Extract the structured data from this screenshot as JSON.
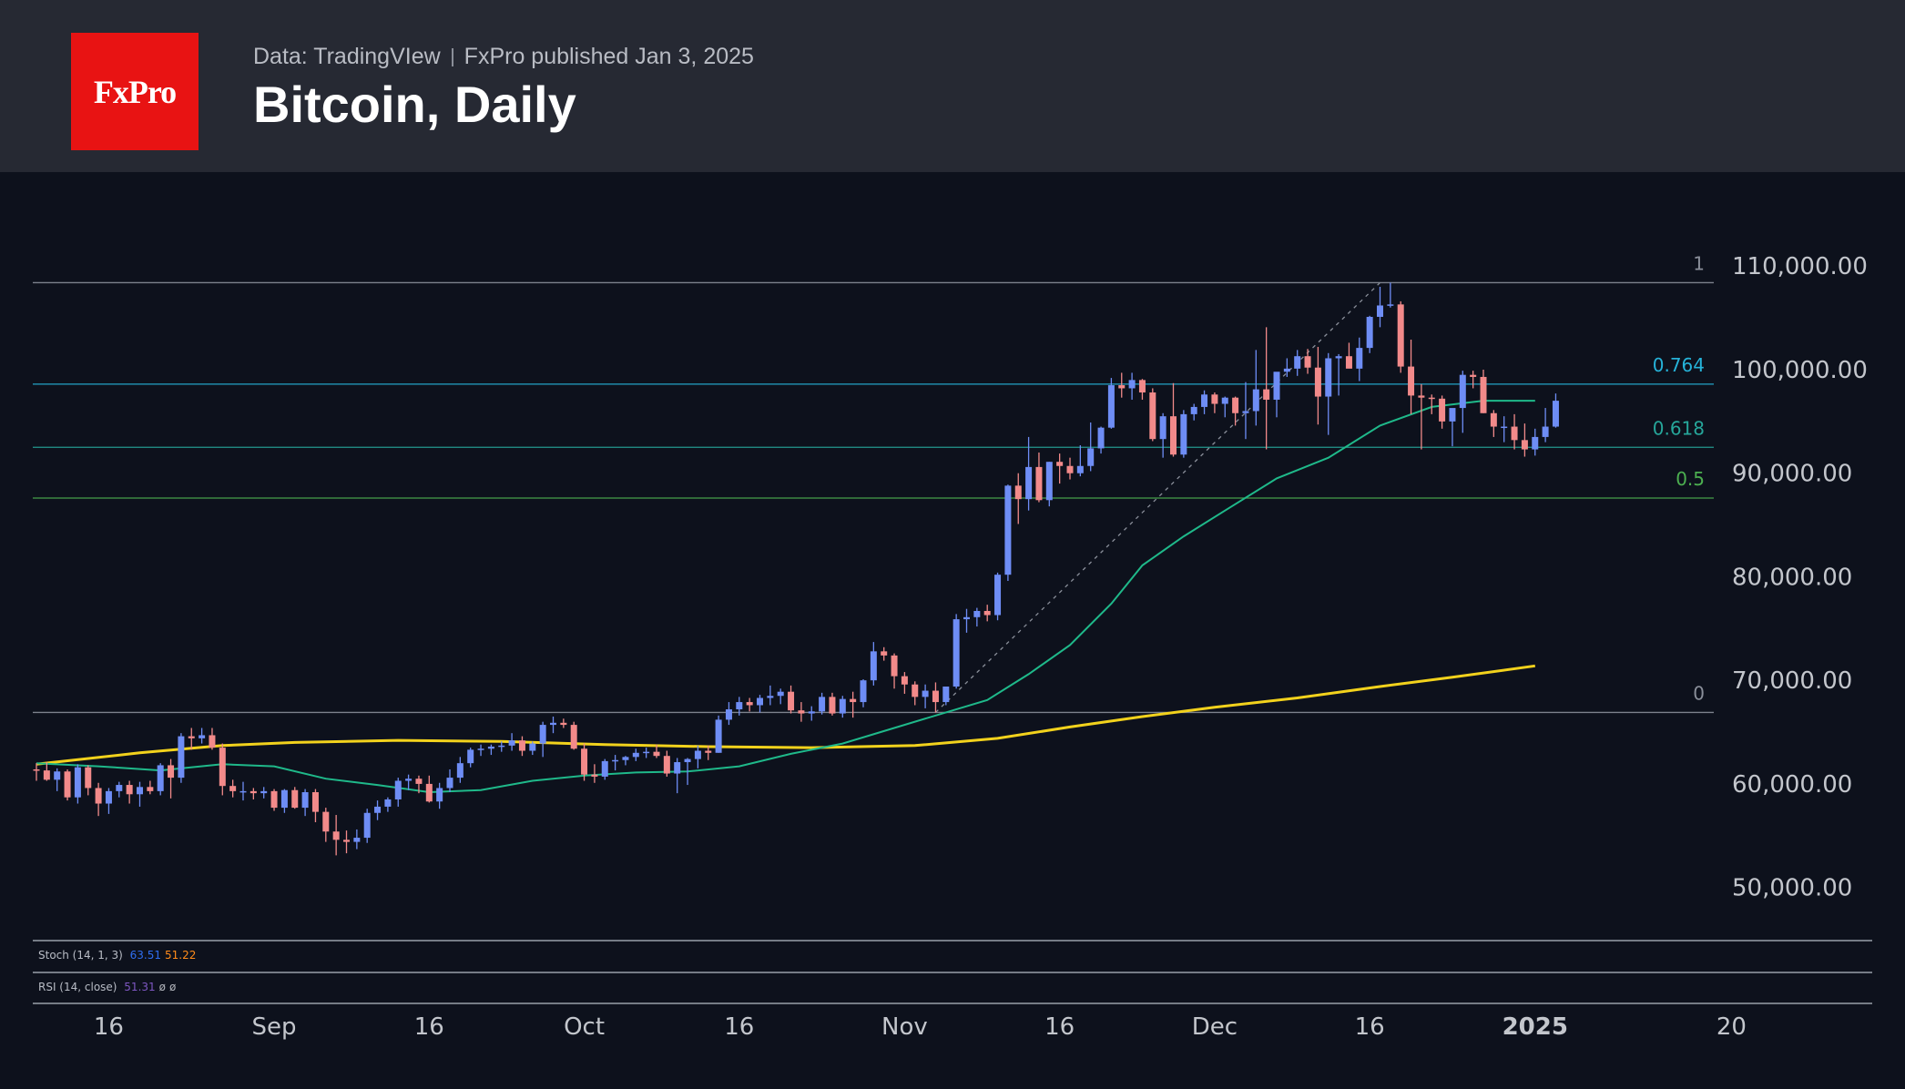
{
  "header": {
    "logo_text": "FxPro",
    "source": "Data: TradingVIew",
    "published": "FxPro published Jan 3, 2025",
    "title": "Bitcoin, Daily"
  },
  "chart_data": {
    "type": "candlestick",
    "title": "Bitcoin, Daily",
    "ylim": [
      46000,
      113000
    ],
    "y_ticks": [
      {
        "value": 110000,
        "label": "110,000.00"
      },
      {
        "value": 100000,
        "label": "100,000.00"
      },
      {
        "value": 90000,
        "label": "90,000.00"
      },
      {
        "value": 80000,
        "label": "80,000.00"
      },
      {
        "value": 70000,
        "label": "70,000.00"
      },
      {
        "value": 60000,
        "label": "60,000.00"
      },
      {
        "value": 50000,
        "label": "50,000.00"
      }
    ],
    "x_ticks": [
      {
        "index": 7,
        "label": "16"
      },
      {
        "index": 23,
        "label": "Sep"
      },
      {
        "index": 38,
        "label": "16"
      },
      {
        "index": 53,
        "label": "Oct"
      },
      {
        "index": 68,
        "label": "16"
      },
      {
        "index": 84,
        "label": "Nov"
      },
      {
        "index": 99,
        "label": "16"
      },
      {
        "index": 114,
        "label": "Dec"
      },
      {
        "index": 129,
        "label": "16"
      },
      {
        "index": 145,
        "label": "2025",
        "bold": true
      },
      {
        "index": 164,
        "label": "20"
      }
    ],
    "fib_levels": [
      {
        "ratio": "1",
        "value": 108300,
        "color": "#8a8f9a"
      },
      {
        "ratio": "0.764",
        "value": 98500,
        "color": "#26b3d9"
      },
      {
        "ratio": "0.618",
        "value": 92400,
        "color": "#26a69a"
      },
      {
        "ratio": "0.5",
        "value": 87500,
        "color": "#4caf50"
      },
      {
        "ratio": "0",
        "value": 66800,
        "color": "#8a8f9a"
      }
    ],
    "colors": {
      "up": "#6e8df5",
      "down": "#f28a8a",
      "ma_fast": "#1fb98a",
      "ma_slow": "#f2d21c",
      "background": "#0d111c"
    },
    "candles": [
      [
        61300,
        61900,
        60200,
        61200
      ],
      [
        61200,
        62000,
        60200,
        60300
      ],
      [
        60300,
        61400,
        59200,
        61100
      ],
      [
        61100,
        61300,
        58300,
        58600
      ],
      [
        58600,
        61800,
        58000,
        61500
      ],
      [
        61500,
        61700,
        58800,
        59500
      ],
      [
        59500,
        60000,
        56800,
        58000
      ],
      [
        58000,
        59500,
        57000,
        59200
      ],
      [
        59200,
        60100,
        58600,
        59800
      ],
      [
        59800,
        60200,
        58000,
        58900
      ],
      [
        58900,
        60100,
        57700,
        59600
      ],
      [
        59600,
        60200,
        58900,
        59200
      ],
      [
        59200,
        61900,
        58800,
        61700
      ],
      [
        61700,
        62300,
        58500,
        60500
      ],
      [
        60500,
        64800,
        60000,
        64500
      ],
      [
        64500,
        65300,
        63200,
        64300
      ],
      [
        64300,
        65300,
        63800,
        64600
      ],
      [
        64600,
        65300,
        63200,
        63400
      ],
      [
        63400,
        63800,
        58800,
        59700
      ],
      [
        59700,
        60300,
        58600,
        59200
      ],
      [
        59200,
        60100,
        58300,
        59200
      ],
      [
        59200,
        59500,
        58400,
        59000
      ],
      [
        59000,
        59600,
        58500,
        59200
      ],
      [
        59200,
        59400,
        57300,
        57600
      ],
      [
        57600,
        59400,
        57100,
        59300
      ],
      [
        59300,
        59600,
        57500,
        57600
      ],
      [
        57600,
        59400,
        56800,
        59100
      ],
      [
        59100,
        59400,
        56200,
        57200
      ],
      [
        57200,
        57600,
        54300,
        55300
      ],
      [
        55300,
        56900,
        53000,
        54500
      ],
      [
        54500,
        55400,
        53200,
        54300
      ],
      [
        54300,
        55500,
        53600,
        54700
      ],
      [
        54700,
        57500,
        54200,
        57100
      ],
      [
        57100,
        58300,
        56400,
        57700
      ],
      [
        57700,
        58600,
        57200,
        58400
      ],
      [
        58400,
        60500,
        57700,
        60200
      ],
      [
        60200,
        60800,
        59300,
        60400
      ],
      [
        60400,
        60700,
        59000,
        59900
      ],
      [
        59900,
        60700,
        58100,
        58200
      ],
      [
        58200,
        60000,
        57500,
        59500
      ],
      [
        59500,
        61300,
        59100,
        60500
      ],
      [
        60500,
        62500,
        60000,
        61900
      ],
      [
        61900,
        63400,
        61500,
        63200
      ],
      [
        63200,
        63700,
        62600,
        63300
      ],
      [
        63300,
        63700,
        62700,
        63500
      ],
      [
        63500,
        64000,
        63000,
        63600
      ],
      [
        63600,
        64800,
        63100,
        64100
      ],
      [
        64100,
        64500,
        62600,
        63100
      ],
      [
        63100,
        64000,
        62700,
        63800
      ],
      [
        63800,
        65900,
        62500,
        65600
      ],
      [
        65600,
        66400,
        64800,
        65800
      ],
      [
        65800,
        66200,
        65300,
        65600
      ],
      [
        65600,
        65900,
        63200,
        63300
      ],
      [
        63300,
        63800,
        60200,
        60800
      ],
      [
        60800,
        61800,
        60000,
        60600
      ],
      [
        60600,
        62300,
        60300,
        62100
      ],
      [
        62100,
        62700,
        61200,
        62200
      ],
      [
        62200,
        62600,
        61700,
        62500
      ],
      [
        62500,
        63300,
        62100,
        62900
      ],
      [
        62900,
        63400,
        62400,
        63000
      ],
      [
        63000,
        63700,
        62400,
        62600
      ],
      [
        62600,
        63100,
        60600,
        60900
      ],
      [
        60900,
        62400,
        59000,
        62000
      ],
      [
        62000,
        62400,
        59800,
        62300
      ],
      [
        62300,
        63600,
        61400,
        63100
      ],
      [
        63100,
        63600,
        62200,
        62900
      ],
      [
        62900,
        66500,
        62900,
        66100
      ],
      [
        66100,
        67800,
        65600,
        67100
      ],
      [
        67100,
        68300,
        66500,
        67800
      ],
      [
        67800,
        68200,
        66900,
        67500
      ],
      [
        67500,
        68500,
        66800,
        68200
      ],
      [
        68200,
        69400,
        67500,
        68400
      ],
      [
        68400,
        69100,
        67600,
        68800
      ],
      [
        68800,
        69400,
        66700,
        67000
      ],
      [
        67000,
        67800,
        65900,
        66700
      ],
      [
        66700,
        67400,
        66000,
        66900
      ],
      [
        66900,
        68700,
        66600,
        68300
      ],
      [
        68300,
        68700,
        66500,
        66700
      ],
      [
        66700,
        68400,
        66300,
        68100
      ],
      [
        68100,
        68800,
        66300,
        67800
      ],
      [
        67800,
        70000,
        67300,
        69900
      ],
      [
        69900,
        73600,
        69400,
        72700
      ],
      [
        72700,
        73100,
        71800,
        72300
      ],
      [
        72300,
        72500,
        69100,
        70300
      ],
      [
        70300,
        70700,
        68600,
        69500
      ],
      [
        69500,
        69800,
        67500,
        68300
      ],
      [
        68300,
        69500,
        67200,
        68900
      ],
      [
        68900,
        69700,
        66800,
        67800
      ],
      [
        67800,
        69300,
        67500,
        69300
      ],
      [
        69300,
        76300,
        69100,
        75800
      ],
      [
        75800,
        76800,
        74500,
        76000
      ],
      [
        76000,
        76900,
        75100,
        76600
      ],
      [
        76600,
        77200,
        75600,
        76200
      ],
      [
        76200,
        80300,
        75700,
        80100
      ],
      [
        80100,
        88800,
        79500,
        88700
      ],
      [
        88700,
        89900,
        85000,
        87400
      ],
      [
        87400,
        93400,
        86300,
        90500
      ],
      [
        90500,
        91900,
        87100,
        87300
      ],
      [
        87300,
        91000,
        86700,
        91000
      ],
      [
        91000,
        91800,
        88900,
        90600
      ],
      [
        90600,
        91400,
        89300,
        89900
      ],
      [
        89900,
        92600,
        89600,
        90600
      ],
      [
        90600,
        94800,
        90100,
        92300
      ],
      [
        92300,
        94400,
        91800,
        94300
      ],
      [
        94300,
        99100,
        94200,
        98400
      ],
      [
        98400,
        99600,
        97200,
        98100
      ],
      [
        98100,
        99600,
        97000,
        98900
      ],
      [
        98900,
        99000,
        97000,
        97700
      ],
      [
        97700,
        98100,
        93000,
        93200
      ],
      [
        93200,
        95700,
        91400,
        95400
      ],
      [
        95400,
        98600,
        91500,
        91700
      ],
      [
        91700,
        96000,
        91400,
        95600
      ],
      [
        95600,
        96600,
        95000,
        96300
      ],
      [
        96300,
        97900,
        95600,
        97500
      ],
      [
        97500,
        97700,
        95700,
        96600
      ],
      [
        96600,
        97300,
        95300,
        97200
      ],
      [
        97200,
        97300,
        94500,
        95700
      ],
      [
        95700,
        98700,
        93200,
        95900
      ],
      [
        95900,
        101800,
        94500,
        98000
      ],
      [
        98000,
        104000,
        92200,
        97000
      ],
      [
        97000,
        99500,
        95300,
        99700
      ],
      [
        99700,
        101000,
        99200,
        100000
      ],
      [
        100000,
        101800,
        99300,
        101200
      ],
      [
        101200,
        101900,
        99500,
        100100
      ],
      [
        100100,
        102100,
        94600,
        97300
      ],
      [
        97300,
        101500,
        93600,
        101000
      ],
      [
        101000,
        101400,
        97400,
        101200
      ],
      [
        101200,
        102500,
        100200,
        100000
      ],
      [
        100000,
        103000,
        98800,
        102000
      ],
      [
        102000,
        105100,
        101500,
        105000
      ],
      [
        105000,
        107900,
        104000,
        106100
      ],
      [
        106100,
        108300,
        105900,
        106200
      ],
      [
        106200,
        106500,
        99600,
        100200
      ],
      [
        100200,
        102800,
        95600,
        97400
      ],
      [
        97400,
        98500,
        92200,
        97200
      ],
      [
        97200,
        97500,
        95600,
        97100
      ],
      [
        97100,
        97400,
        94200,
        94900
      ],
      [
        94900,
        96000,
        92500,
        96200
      ],
      [
        96200,
        99800,
        93800,
        99400
      ],
      [
        99400,
        99800,
        98100,
        99200
      ],
      [
        99200,
        99900,
        95700,
        95700
      ],
      [
        95700,
        96000,
        93400,
        94400
      ],
      [
        94400,
        95400,
        92900,
        94400
      ],
      [
        94400,
        95600,
        92200,
        93100
      ],
      [
        93100,
        94700,
        91500,
        92200
      ],
      [
        92200,
        94200,
        91600,
        93400
      ],
      [
        93400,
        96200,
        92900,
        94400
      ],
      [
        94400,
        97600,
        94300,
        96900
      ]
    ],
    "ma_fast": [
      [
        0,
        61900
      ],
      [
        6,
        61600
      ],
      [
        12,
        61200
      ],
      [
        18,
        61800
      ],
      [
        23,
        61600
      ],
      [
        28,
        60400
      ],
      [
        33,
        59800
      ],
      [
        38,
        59100
      ],
      [
        43,
        59300
      ],
      [
        48,
        60200
      ],
      [
        53,
        60700
      ],
      [
        58,
        61000
      ],
      [
        63,
        61100
      ],
      [
        68,
        61600
      ],
      [
        73,
        62800
      ],
      [
        78,
        63800
      ],
      [
        83,
        65300
      ],
      [
        88,
        66800
      ],
      [
        92,
        68000
      ],
      [
        96,
        70500
      ],
      [
        100,
        73300
      ],
      [
        104,
        77300
      ],
      [
        107,
        81000
      ],
      [
        111,
        83800
      ],
      [
        115,
        86300
      ],
      [
        120,
        89400
      ],
      [
        125,
        91400
      ],
      [
        130,
        94500
      ],
      [
        135,
        96300
      ],
      [
        140,
        96900
      ],
      [
        145,
        96900
      ]
    ],
    "ma_slow": [
      [
        0,
        61800
      ],
      [
        10,
        62900
      ],
      [
        18,
        63600
      ],
      [
        25,
        63900
      ],
      [
        35,
        64100
      ],
      [
        45,
        64000
      ],
      [
        55,
        63700
      ],
      [
        65,
        63500
      ],
      [
        75,
        63400
      ],
      [
        85,
        63600
      ],
      [
        93,
        64300
      ],
      [
        100,
        65400
      ],
      [
        107,
        66400
      ],
      [
        114,
        67300
      ],
      [
        122,
        68200
      ],
      [
        130,
        69300
      ],
      [
        137,
        70200
      ],
      [
        145,
        71300
      ]
    ],
    "indicators": [
      {
        "label": "Stoch (14, 1, 3)",
        "values": [
          {
            "text": "63.51",
            "color": "#2f6ef0"
          },
          {
            "text": "51.22",
            "color": "#ff8c1a"
          }
        ]
      },
      {
        "label": "RSI (14, close)",
        "values": [
          {
            "text": "51.31",
            "color": "#7e57c2"
          },
          {
            "text": "ø",
            "color": "#b0b3ba"
          },
          {
            "text": "ø",
            "color": "#b0b3ba"
          }
        ]
      }
    ]
  }
}
